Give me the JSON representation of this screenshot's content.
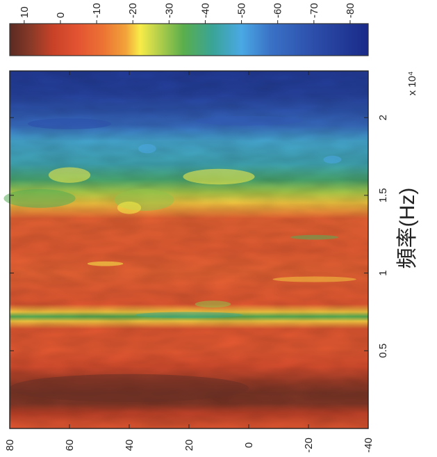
{
  "chart_data": [
    {
      "type": "heatmap",
      "orientation": "rotated 90° counter-clockwise",
      "xlabel": "頻率(Hz)",
      "x_multiplier": "x 10⁴",
      "x_ticks": [
        "0.5",
        "1",
        "1.5",
        "2"
      ],
      "x_tick_values": [
        5000,
        10000,
        15000,
        20000
      ],
      "xlim": [
        0,
        23000
      ],
      "ylabel": "",
      "y_ticks": [
        "80",
        "60",
        "40",
        "20",
        "0",
        "-20",
        "-40"
      ],
      "y_tick_values": [
        80,
        60,
        40,
        20,
        0,
        -20,
        -40
      ],
      "ylim": [
        -40,
        80
      ],
      "grid": false,
      "value_range": [
        -85,
        10
      ],
      "frequency_profile_db": [
        {
          "x": 0,
          "v": -6
        },
        {
          "x": 1000,
          "v": 3
        },
        {
          "x": 1600,
          "v": 9
        },
        {
          "x": 2300,
          "v": 10
        },
        {
          "x": 3100,
          "v": 6
        },
        {
          "x": 4000,
          "v": -3
        },
        {
          "x": 5000,
          "v": -6
        },
        {
          "x": 6400,
          "v": -6
        },
        {
          "x": 6900,
          "v": -20
        },
        {
          "x": 7200,
          "v": -35
        },
        {
          "x": 7500,
          "v": -20
        },
        {
          "x": 8000,
          "v": -6
        },
        {
          "x": 9000,
          "v": -7
        },
        {
          "x": 10000,
          "v": -8
        },
        {
          "x": 11500,
          "v": -7
        },
        {
          "x": 13500,
          "v": -8
        },
        {
          "x": 14500,
          "v": -20
        },
        {
          "x": 15200,
          "v": -28
        },
        {
          "x": 16000,
          "v": -38
        },
        {
          "x": 17000,
          "v": -45
        },
        {
          "x": 18500,
          "v": -48
        },
        {
          "x": 19500,
          "v": -60
        },
        {
          "x": 20500,
          "v": -68
        },
        {
          "x": 21500,
          "v": -75
        },
        {
          "x": 23000,
          "v": -78
        }
      ]
    },
    {
      "type": "colorbar",
      "tick_labels": [
        "10",
        "0",
        "-10",
        "-20",
        "-30",
        "-40",
        "-50",
        "-60",
        "-70",
        "-80"
      ],
      "tick_values": [
        10,
        0,
        -10,
        -20,
        -30,
        -40,
        -50,
        -60,
        -70,
        -80
      ],
      "range": [
        -85,
        14
      ],
      "colors": [
        {
          "v": 14,
          "c": "#5a2a22"
        },
        {
          "v": 8,
          "c": "#8a3a28"
        },
        {
          "v": 2,
          "c": "#c84228"
        },
        {
          "v": -5,
          "c": "#e45432"
        },
        {
          "v": -12,
          "c": "#ec7434"
        },
        {
          "v": -18,
          "c": "#f2a23a"
        },
        {
          "v": -22,
          "c": "#f8ec48"
        },
        {
          "v": -27,
          "c": "#b6d04a"
        },
        {
          "v": -34,
          "c": "#5aae4c"
        },
        {
          "v": -42,
          "c": "#3aa496"
        },
        {
          "v": -50,
          "c": "#4aa8e4"
        },
        {
          "v": -58,
          "c": "#3a72c6"
        },
        {
          "v": -70,
          "c": "#2c4eaa"
        },
        {
          "v": -85,
          "c": "#1a2a88"
        }
      ]
    }
  ]
}
